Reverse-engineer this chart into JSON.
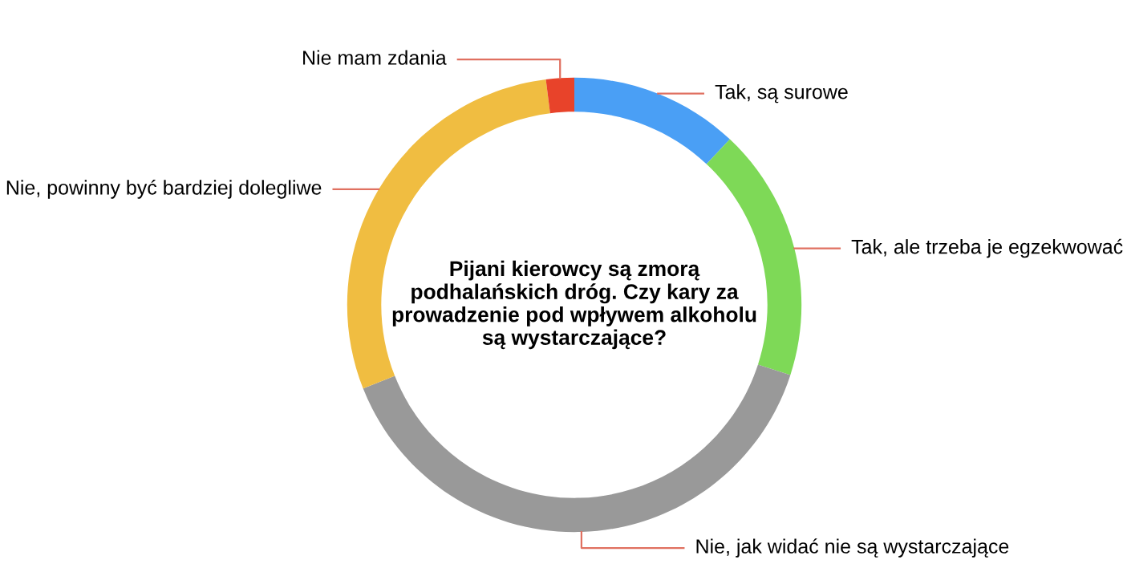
{
  "chart_data": {
    "type": "donut",
    "title": "Pijani kierowcy są zmorą podhalańskich dróg. Czy kary za prowadzenie pod wpływem alkoholu są wystarczające?",
    "categories": [
      "Tak, są surowe",
      "Tak, ale trzeba je egzekwować",
      "Nie, jak widać nie są wystarczające",
      "Nie, powinny być bardziej dolegliwe",
      "Nie mam zdania"
    ],
    "values": [
      12,
      18,
      39,
      29,
      2
    ],
    "colors": [
      "#4a9ff5",
      "#7ed957",
      "#999999",
      "#f0bd41",
      "#e8432a"
    ],
    "legend": false
  }
}
